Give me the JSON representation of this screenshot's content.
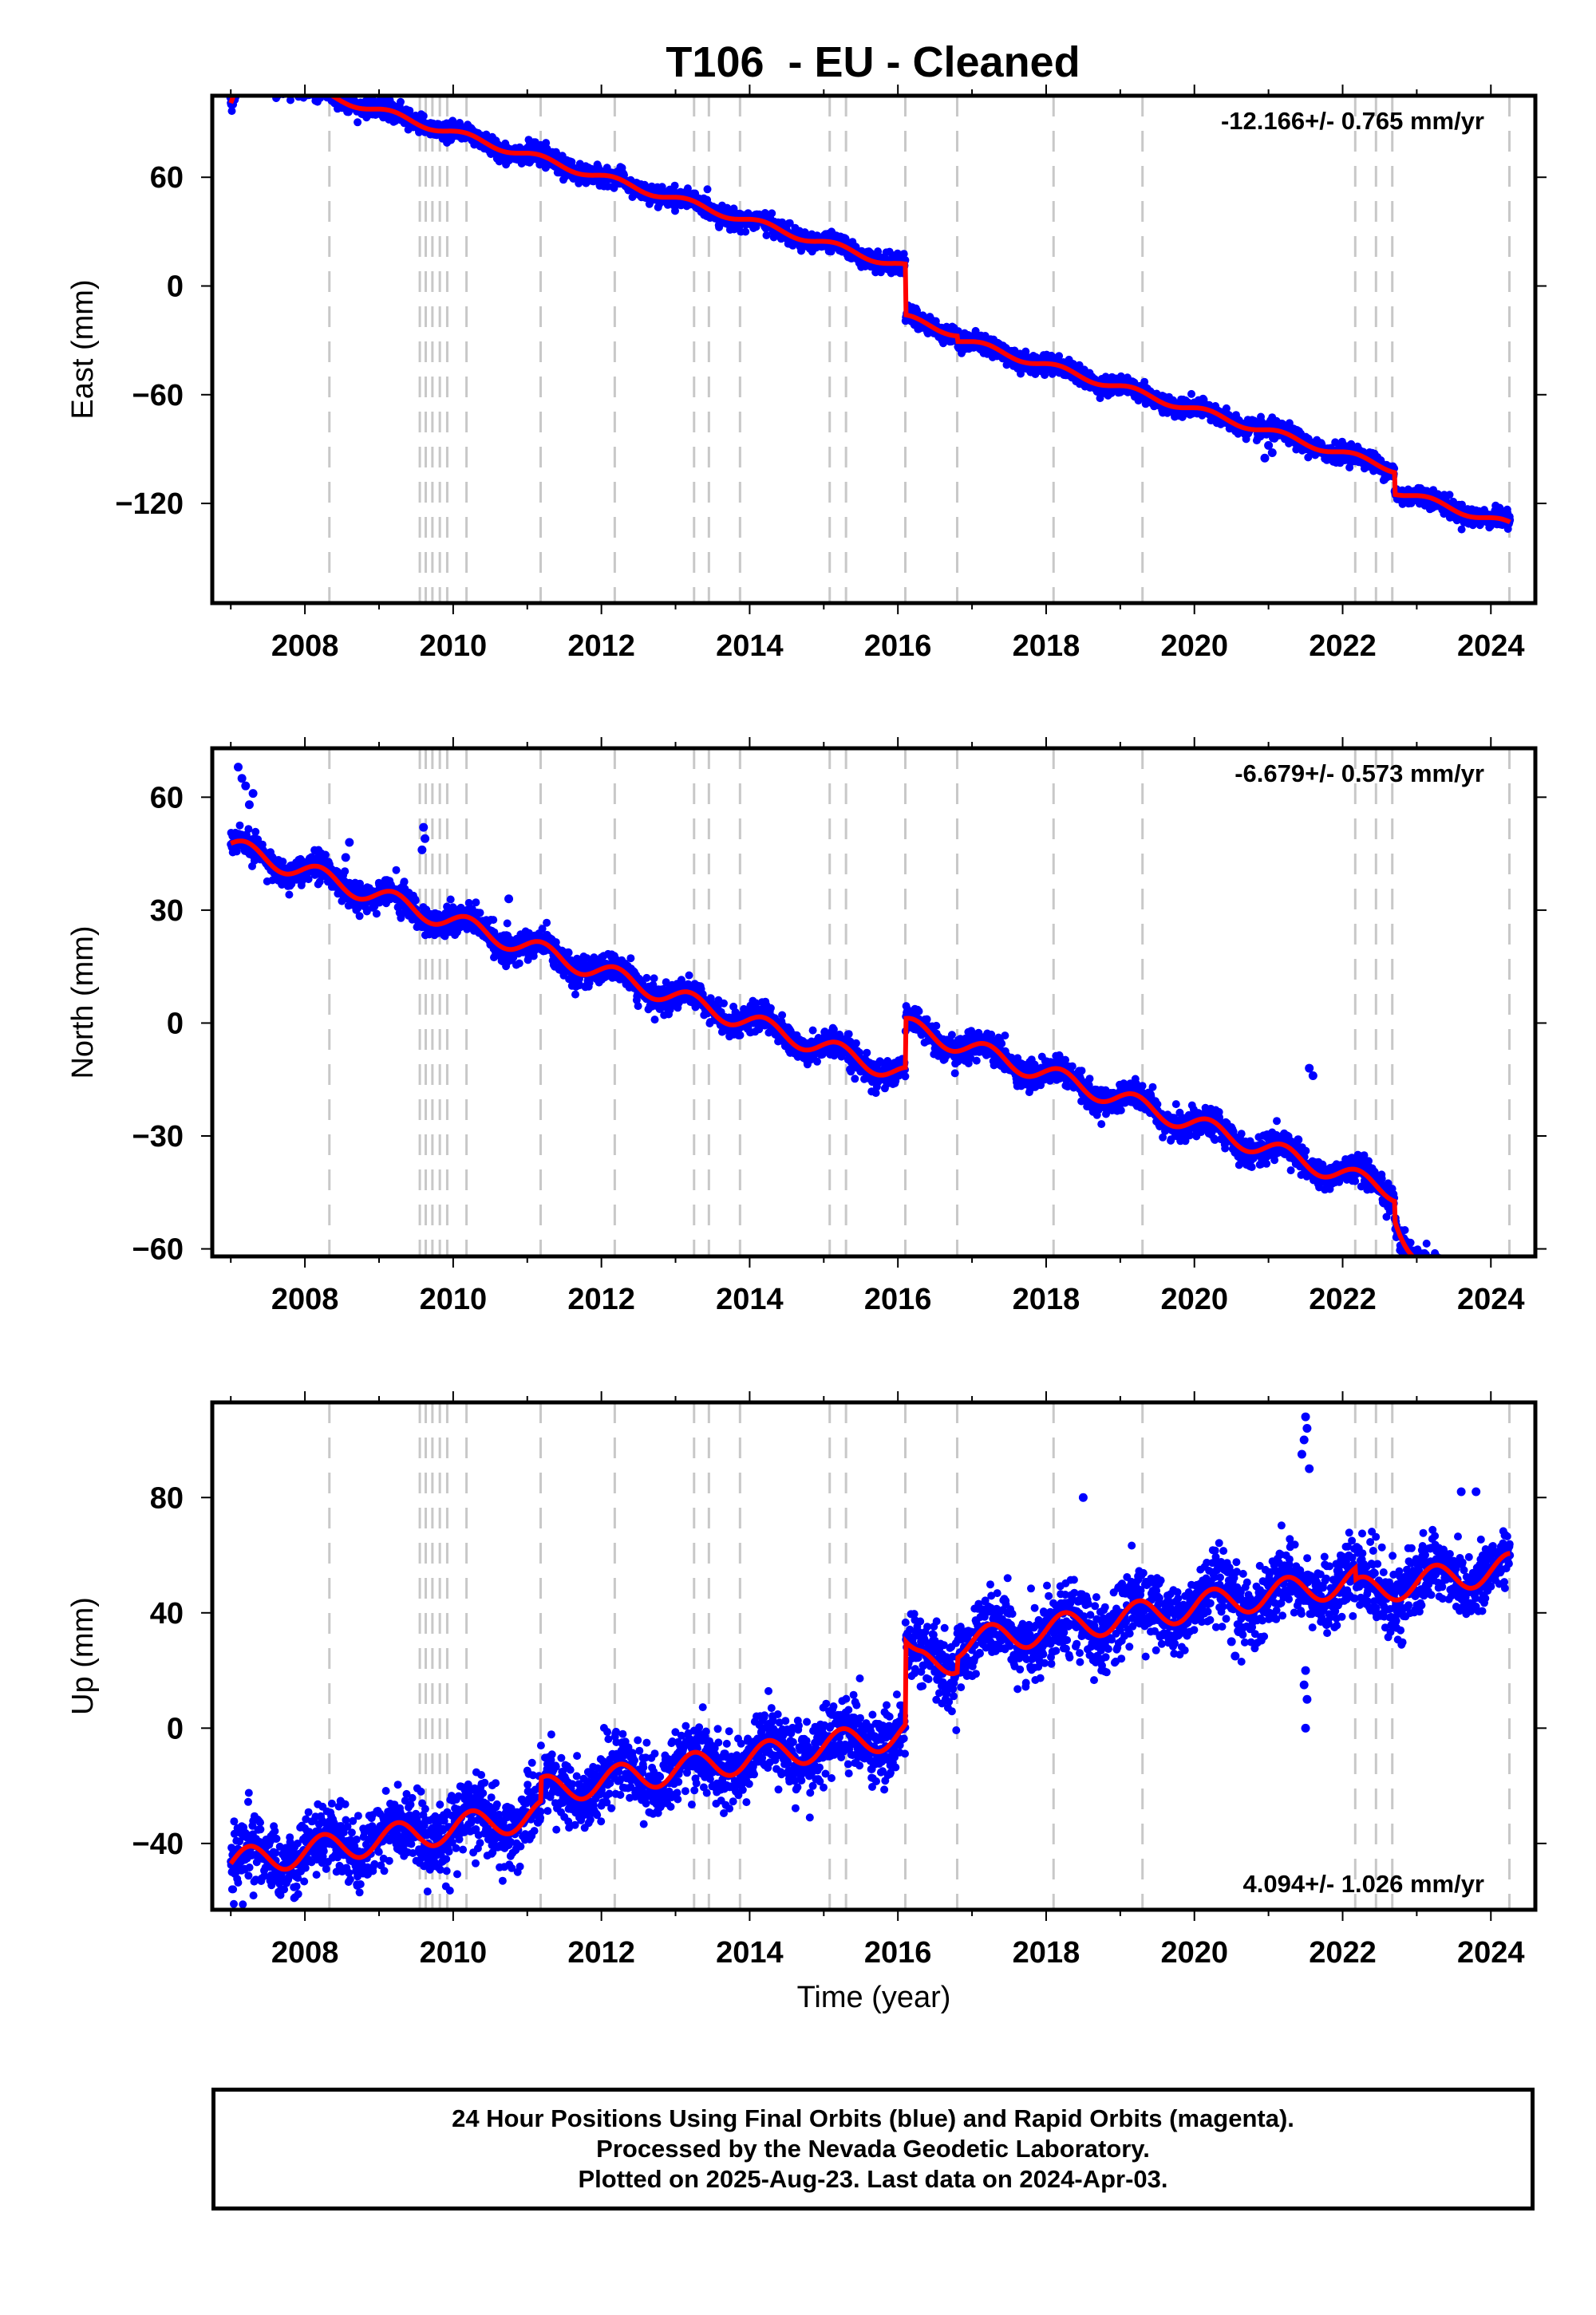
{
  "title": "T106  - EU - Cleaned",
  "x_axis_label": "Time (year)",
  "footer": {
    "line1": "24 Hour Positions Using Final Orbits (blue) and Rapid Orbits (magenta).",
    "line2": "Processed by the Nevada Geodetic Laboratory.",
    "line3": "Plotted on 2025-Aug-23. Last data on 2024-Apr-03."
  },
  "colors": {
    "data": "#0000ff",
    "model": "#ff0000",
    "steps": "#c8c8c8",
    "frame": "#000000"
  },
  "chart_data": [
    {
      "type": "scatter",
      "ylabel": "East (mm)",
      "rate_label": "-12.166+/- 0.765 mm/yr",
      "rate_position": "top-right",
      "xlim": [
        2006.75,
        2024.6
      ],
      "ylim": [
        -175,
        105
      ],
      "xticks": [
        2008,
        2010,
        2012,
        2014,
        2016,
        2018,
        2020,
        2022,
        2024
      ],
      "yticks": [
        -120,
        -60,
        0,
        60
      ],
      "step_lines": [
        2008.33,
        2009.55,
        2009.63,
        2009.72,
        2009.82,
        2009.92,
        2010.18,
        2011.18,
        2012.18,
        2013.25,
        2013.45,
        2013.87,
        2015.08,
        2015.3,
        2016.1,
        2016.8,
        2018.1,
        2019.3,
        2022.17,
        2022.45,
        2022.67,
        2024.25
      ],
      "model_series": {
        "rate": -12.166,
        "x0": 2007.0,
        "y0": 100,
        "annual_amp": 2.0,
        "annual_phase": 0.5,
        "steps": [
          [
            2016.1,
            -28
          ],
          [
            2016.8,
            -3
          ],
          [
            2022.7,
            -12
          ]
        ],
        "tail": [
          2007.0,
          2007.35,
          21,
          3
        ]
      },
      "observed_series": {
        "noise": 2.5,
        "outliers": [
          [
            2021.0,
            -88
          ],
          [
            2021.05,
            -92
          ],
          [
            2020.95,
            -95
          ],
          [
            2007.0,
            104
          ]
        ]
      }
    },
    {
      "type": "scatter",
      "ylabel": "North (mm)",
      "rate_label": "-6.679+/- 0.573 mm/yr",
      "rate_position": "top-right",
      "xlim": [
        2006.75,
        2024.6
      ],
      "ylim": [
        -62,
        73
      ],
      "xticks": [
        2008,
        2010,
        2012,
        2014,
        2016,
        2018,
        2020,
        2022,
        2024
      ],
      "yticks": [
        -60,
        -30,
        0,
        30,
        60
      ],
      "step_lines": [
        2008.33,
        2009.55,
        2009.63,
        2009.72,
        2009.82,
        2009.92,
        2010.18,
        2011.18,
        2012.18,
        2013.25,
        2013.45,
        2013.87,
        2015.08,
        2015.3,
        2016.1,
        2016.8,
        2018.1,
        2019.3,
        2022.17,
        2022.45,
        2022.67,
        2024.25
      ],
      "model_series": {
        "rate": -6.679,
        "x0": 2007.0,
        "y0": 47,
        "annual_amp": 2.5,
        "annual_phase": 0.3,
        "steps": [
          [
            2016.1,
            13
          ],
          [
            2022.7,
            -5
          ]
        ],
        "tail": [
          2022.7,
          2023.2,
          -14,
          0
        ]
      },
      "observed_series": {
        "noise": 1.8,
        "outliers": [
          [
            2007.1,
            68
          ],
          [
            2007.15,
            65
          ],
          [
            2007.2,
            63
          ],
          [
            2007.3,
            61
          ],
          [
            2007.25,
            58
          ],
          [
            2008.55,
            44
          ],
          [
            2008.6,
            48
          ],
          [
            2009.6,
            52
          ],
          [
            2009.62,
            49
          ],
          [
            2009.58,
            46
          ],
          [
            2010.75,
            33
          ],
          [
            2021.25,
            -30
          ],
          [
            2021.3,
            -32
          ],
          [
            2021.4,
            -31
          ],
          [
            2021.55,
            -12
          ],
          [
            2021.6,
            -14
          ]
        ]
      }
    },
    {
      "type": "scatter",
      "ylabel": "Up (mm)",
      "rate_label": "4.094+/- 1.026 mm/yr",
      "rate_position": "bottom-right",
      "xlim": [
        2006.75,
        2024.6
      ],
      "ylim": [
        -63,
        113
      ],
      "xticks": [
        2008,
        2010,
        2012,
        2014,
        2016,
        2018,
        2020,
        2022,
        2024
      ],
      "yticks": [
        -40,
        0,
        40,
        80
      ],
      "step_lines": [
        2008.33,
        2009.55,
        2009.63,
        2009.72,
        2009.82,
        2009.92,
        2010.18,
        2011.18,
        2012.18,
        2013.25,
        2013.45,
        2013.87,
        2015.08,
        2015.3,
        2016.1,
        2016.8,
        2018.1,
        2019.3,
        2022.17,
        2022.45,
        2022.67,
        2024.25
      ],
      "model_series": {
        "rate": 4.094,
        "x0": 2007.0,
        "y0": -47,
        "annual_amp": 5.0,
        "annual_phase": 0.0,
        "steps": [
          [
            2011.18,
            8
          ],
          [
            2016.1,
            29
          ],
          [
            2016.8,
            5
          ],
          [
            2022.17,
            -4
          ]
        ],
        "tail": [
          2016.1,
          2016.3,
          -6,
          0
        ]
      },
      "observed_series": {
        "noise": 6.0,
        "outliers": [
          [
            2021.5,
            108
          ],
          [
            2021.52,
            104
          ],
          [
            2021.48,
            100
          ],
          [
            2021.45,
            95
          ],
          [
            2021.55,
            90
          ],
          [
            2021.5,
            20
          ],
          [
            2021.48,
            15
          ],
          [
            2021.52,
            10
          ],
          [
            2021.5,
            0
          ],
          [
            2018.5,
            80
          ],
          [
            2020.5,
            30
          ],
          [
            2020.55,
            25
          ],
          [
            2023.6,
            82
          ],
          [
            2023.8,
            82
          ]
        ]
      }
    }
  ]
}
